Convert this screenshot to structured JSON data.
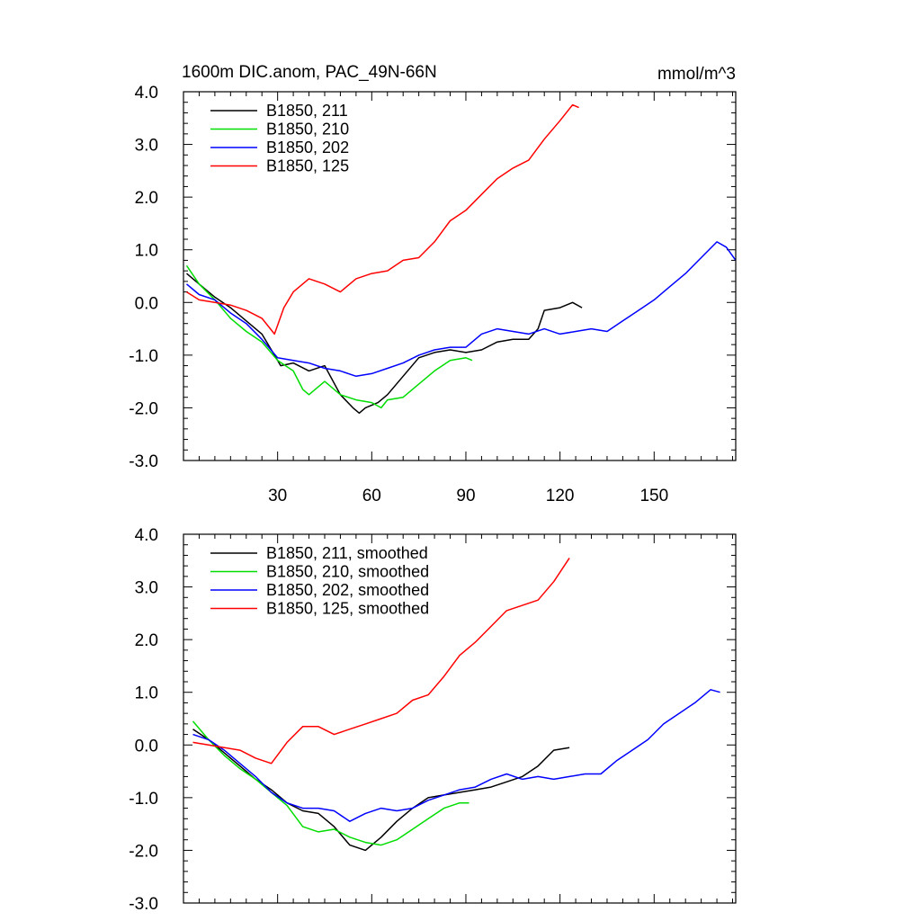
{
  "chart_data": [
    {
      "type": "line",
      "title": "1600m DIC.anom, PAC_49N-66N",
      "units": "mmol/m^3",
      "xlim": [
        0,
        176
      ],
      "ylim": [
        -3.0,
        4.0
      ],
      "xticks": [
        30,
        60,
        90,
        120,
        150
      ],
      "xtick_labels": [
        "30",
        "60",
        "90",
        "120",
        "150"
      ],
      "show_xtick_labels": true,
      "yticks": [
        -3,
        -2,
        -1,
        0,
        1,
        2,
        3,
        4
      ],
      "ytick_labels": [
        "-3.0",
        "-2.0",
        "-1.0",
        "0.0",
        "1.0",
        "2.0",
        "3.0",
        "4.0"
      ],
      "legend_position": "top-left",
      "series": [
        {
          "name": "B1850, 211",
          "color": "#000000",
          "x": [
            1,
            5,
            10,
            15,
            20,
            25,
            28,
            31,
            35,
            40,
            45,
            50,
            54,
            56,
            58,
            62,
            65,
            70,
            75,
            80,
            85,
            90,
            95,
            100,
            105,
            110,
            113,
            115,
            120,
            124,
            127
          ],
          "y": [
            0.55,
            0.35,
            0.1,
            -0.1,
            -0.35,
            -0.6,
            -0.9,
            -1.2,
            -1.15,
            -1.3,
            -1.2,
            -1.75,
            -2.0,
            -2.1,
            -2.0,
            -1.9,
            -1.75,
            -1.4,
            -1.05,
            -0.95,
            -0.9,
            -0.95,
            -0.9,
            -0.75,
            -0.7,
            -0.7,
            -0.5,
            -0.15,
            -0.1,
            0.0,
            -0.1
          ]
        },
        {
          "name": "B1850, 210",
          "color": "#00dd00",
          "x": [
            1,
            5,
            10,
            15,
            20,
            25,
            30,
            35,
            38,
            40,
            45,
            50,
            55,
            60,
            63,
            65,
            70,
            75,
            80,
            85,
            90,
            92
          ],
          "y": [
            0.7,
            0.35,
            0.05,
            -0.3,
            -0.55,
            -0.75,
            -1.1,
            -1.3,
            -1.65,
            -1.75,
            -1.5,
            -1.75,
            -1.85,
            -1.9,
            -2.0,
            -1.85,
            -1.8,
            -1.55,
            -1.3,
            -1.1,
            -1.05,
            -1.1
          ]
        },
        {
          "name": "B1850, 202",
          "color": "#0000ff",
          "x": [
            1,
            5,
            10,
            15,
            20,
            25,
            30,
            35,
            40,
            45,
            50,
            55,
            60,
            65,
            70,
            75,
            80,
            85,
            90,
            95,
            100,
            105,
            110,
            115,
            120,
            125,
            130,
            135,
            140,
            145,
            150,
            155,
            160,
            165,
            170,
            173,
            176
          ],
          "y": [
            0.35,
            0.15,
            0.05,
            -0.2,
            -0.4,
            -0.7,
            -1.05,
            -1.1,
            -1.15,
            -1.25,
            -1.3,
            -1.4,
            -1.35,
            -1.25,
            -1.15,
            -1.0,
            -0.9,
            -0.85,
            -0.85,
            -0.6,
            -0.5,
            -0.55,
            -0.6,
            -0.5,
            -0.6,
            -0.55,
            -0.5,
            -0.55,
            -0.35,
            -0.15,
            0.05,
            0.3,
            0.55,
            0.85,
            1.15,
            1.05,
            0.8
          ]
        },
        {
          "name": "B1850, 125",
          "color": "#ff0000",
          "x": [
            1,
            5,
            10,
            15,
            20,
            25,
            29,
            32,
            35,
            40,
            45,
            50,
            55,
            60,
            65,
            70,
            75,
            80,
            85,
            90,
            95,
            100,
            105,
            110,
            115,
            120,
            124,
            126
          ],
          "y": [
            0.2,
            0.05,
            0.0,
            -0.05,
            -0.15,
            -0.3,
            -0.6,
            -0.1,
            0.2,
            0.45,
            0.35,
            0.2,
            0.45,
            0.55,
            0.6,
            0.8,
            0.85,
            1.15,
            1.55,
            1.75,
            2.05,
            2.35,
            2.55,
            2.7,
            3.1,
            3.45,
            3.75,
            3.7
          ]
        }
      ]
    },
    {
      "type": "line",
      "title": "",
      "units": "",
      "xlim": [
        0,
        176
      ],
      "ylim": [
        -3.0,
        4.0
      ],
      "xticks": [
        30,
        60,
        90,
        120,
        150
      ],
      "xtick_labels": [],
      "show_xtick_labels": false,
      "yticks": [
        -3,
        -2,
        -1,
        0,
        1,
        2,
        3,
        4
      ],
      "ytick_labels": [
        "-3.0",
        "-2.0",
        "-1.0",
        "0.0",
        "1.0",
        "2.0",
        "3.0",
        "4.0"
      ],
      "legend_position": "top-left",
      "series": [
        {
          "name": "B1850, 211, smoothed",
          "color": "#000000",
          "x": [
            3,
            8,
            13,
            18,
            23,
            28,
            33,
            38,
            43,
            48,
            53,
            58,
            63,
            68,
            73,
            78,
            83,
            88,
            93,
            98,
            103,
            108,
            113,
            118,
            123
          ],
          "y": [
            0.3,
            0.1,
            -0.15,
            -0.4,
            -0.65,
            -0.85,
            -1.1,
            -1.25,
            -1.3,
            -1.55,
            -1.9,
            -2.0,
            -1.75,
            -1.45,
            -1.2,
            -1.0,
            -0.95,
            -0.9,
            -0.85,
            -0.8,
            -0.7,
            -0.6,
            -0.4,
            -0.1,
            -0.05
          ]
        },
        {
          "name": "B1850, 210, smoothed",
          "color": "#00dd00",
          "x": [
            3,
            8,
            13,
            18,
            23,
            28,
            33,
            38,
            43,
            48,
            53,
            58,
            63,
            68,
            73,
            78,
            83,
            88,
            91
          ],
          "y": [
            0.45,
            0.1,
            -0.2,
            -0.45,
            -0.65,
            -0.9,
            -1.15,
            -1.55,
            -1.65,
            -1.6,
            -1.75,
            -1.85,
            -1.9,
            -1.8,
            -1.6,
            -1.4,
            -1.2,
            -1.1,
            -1.1
          ]
        },
        {
          "name": "B1850, 202, smoothed",
          "color": "#0000ff",
          "x": [
            3,
            8,
            13,
            18,
            23,
            28,
            33,
            38,
            43,
            48,
            53,
            58,
            63,
            68,
            73,
            78,
            83,
            88,
            93,
            98,
            103,
            108,
            113,
            118,
            123,
            128,
            133,
            138,
            143,
            148,
            153,
            158,
            163,
            168,
            171
          ],
          "y": [
            0.2,
            0.1,
            -0.1,
            -0.35,
            -0.6,
            -0.9,
            -1.1,
            -1.2,
            -1.2,
            -1.25,
            -1.45,
            -1.3,
            -1.2,
            -1.25,
            -1.2,
            -1.05,
            -0.95,
            -0.85,
            -0.8,
            -0.65,
            -0.55,
            -0.65,
            -0.6,
            -0.65,
            -0.6,
            -0.55,
            -0.55,
            -0.3,
            -0.1,
            0.1,
            0.4,
            0.6,
            0.8,
            1.05,
            1.0
          ]
        },
        {
          "name": "B1850, 125, smoothed",
          "color": "#ff0000",
          "x": [
            3,
            8,
            13,
            18,
            23,
            28,
            33,
            38,
            43,
            48,
            53,
            58,
            63,
            68,
            73,
            78,
            83,
            88,
            93,
            98,
            103,
            108,
            113,
            118,
            123
          ],
          "y": [
            0.05,
            0.0,
            -0.05,
            -0.1,
            -0.25,
            -0.35,
            0.05,
            0.35,
            0.35,
            0.2,
            0.3,
            0.4,
            0.5,
            0.6,
            0.85,
            0.95,
            1.3,
            1.7,
            1.95,
            2.25,
            2.55,
            2.65,
            2.75,
            3.1,
            3.55
          ]
        }
      ]
    }
  ]
}
